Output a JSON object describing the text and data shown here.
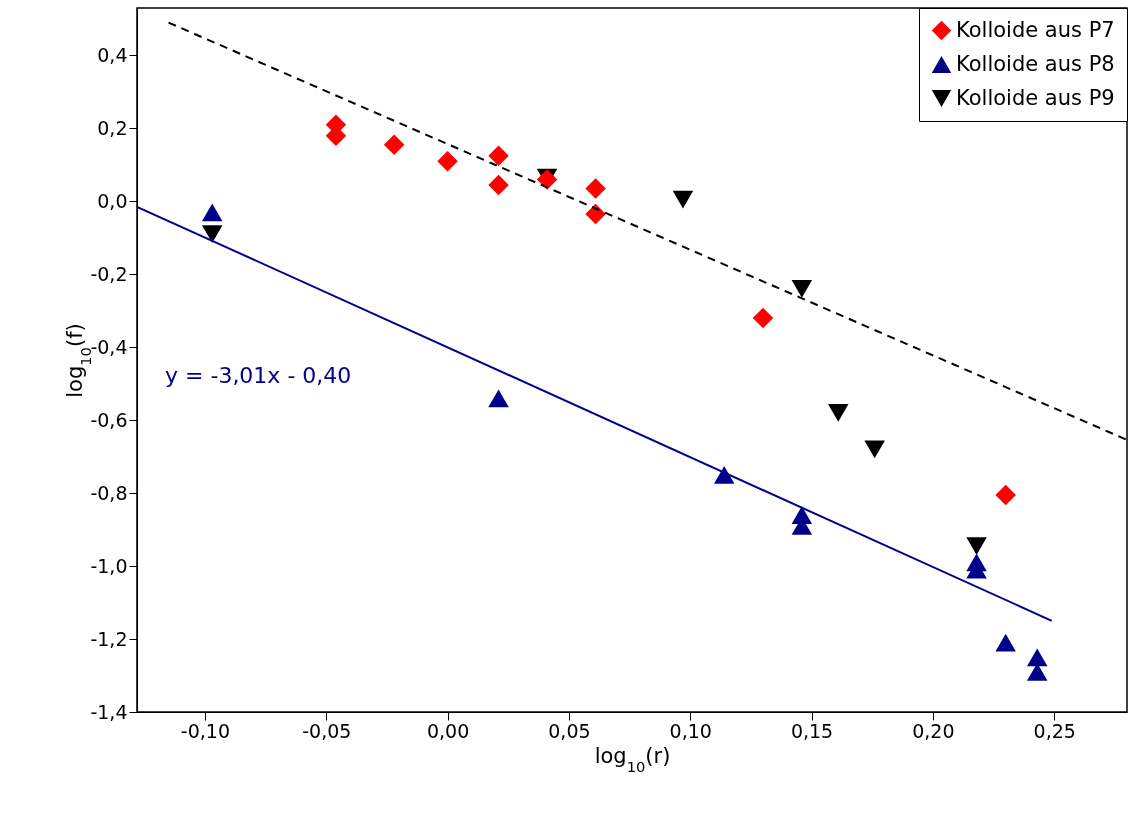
{
  "chart_data": {
    "type": "scatter",
    "xlabel": "log$_{10}$(r)",
    "ylabel": "log$_{10}$(f)",
    "xlim": [
      -0.128,
      0.28
    ],
    "ylim": [
      -1.4,
      0.53
    ],
    "xticks": [
      {
        "value": -0.1,
        "label": "-0,10"
      },
      {
        "value": -0.05,
        "label": "-0,05"
      },
      {
        "value": 0,
        "label": "0,00"
      },
      {
        "value": 0.05,
        "label": "0,05"
      },
      {
        "value": 0.1,
        "label": "0,10"
      },
      {
        "value": 0.15,
        "label": "0,15"
      },
      {
        "value": 0.2,
        "label": "0,20"
      },
      {
        "value": 0.25,
        "label": "0,25"
      }
    ],
    "yticks": [
      {
        "value": -1.4,
        "label": "-1,4"
      },
      {
        "value": -1.2,
        "label": "-1,2"
      },
      {
        "value": -1,
        "label": "-1,0"
      },
      {
        "value": -0.8,
        "label": "-0,8"
      },
      {
        "value": -0.6,
        "label": "-0,6"
      },
      {
        "value": -0.4,
        "label": "-0,4"
      },
      {
        "value": -0.2,
        "label": "-0,2"
      },
      {
        "value": 0,
        "label": "0,0"
      },
      {
        "value": 0.2,
        "label": "0,2"
      },
      {
        "value": 0.4,
        "label": "0,4"
      }
    ],
    "grid": false,
    "legend": "top right",
    "series": [
      {
        "name": "Kolloide aus P7",
        "type": "scatter",
        "marker": "diamond",
        "color": "#ff0000",
        "x": [
          -0.046,
          -0.046,
          -0.022,
          0.0,
          0.021,
          0.021,
          0.041,
          0.061,
          0.061,
          0.13,
          0.23
        ],
        "values": [
          0.21,
          0.18,
          0.155,
          0.11,
          0.125,
          0.045,
          0.06,
          0.035,
          -0.035,
          -0.32,
          -0.805
        ]
      },
      {
        "name": "Kolloide aus P8",
        "type": "scatter",
        "marker": "triangle",
        "color": "#00008b",
        "x": [
          -0.097,
          0.021,
          0.114,
          0.146,
          0.146,
          0.218,
          0.218,
          0.23,
          0.243,
          0.243
        ],
        "values": [
          -0.03,
          -0.54,
          -0.75,
          -0.86,
          -0.89,
          -0.99,
          -1.01,
          -1.21,
          -1.25,
          -1.29
        ]
      },
      {
        "name": "Kolloide aus P9",
        "type": "scatter",
        "marker": "triangle-down",
        "color": "#000000",
        "x": [
          -0.097,
          0.041,
          0.097,
          0.146,
          0.161,
          0.176,
          0.218
        ],
        "values": [
          -0.09,
          0.065,
          0.005,
          -0.24,
          -0.58,
          -0.68,
          -0.945
        ]
      },
      {
        "type": "line",
        "line_style": "solid",
        "color": "#00008b",
        "x": [
          -0.128,
          0.249
        ],
        "values": [
          -0.015,
          -1.15
        ]
      },
      {
        "type": "line",
        "line_style": "dashed",
        "color": "#000000",
        "x": [
          -0.115,
          0.28
        ],
        "values": [
          0.49,
          -0.654
        ]
      }
    ],
    "annotations": [
      "y = -3,01x - 0,40"
    ]
  }
}
